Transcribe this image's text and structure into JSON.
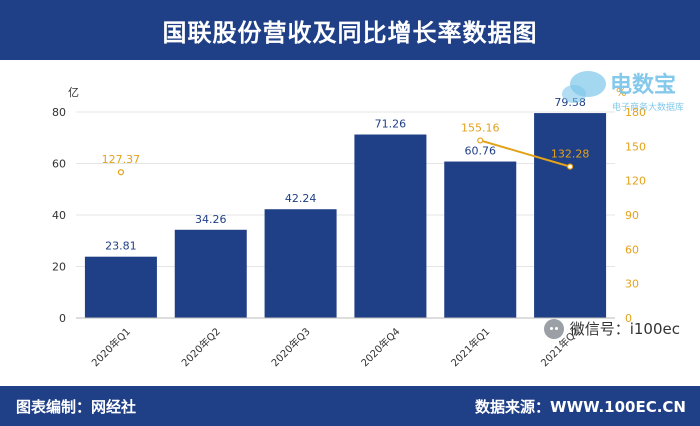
{
  "header": {
    "title": "国联股份营收及同比增长率数据图"
  },
  "footer": {
    "left": "图表编制：网经社",
    "right": "数据来源：WWW.100EC.CN"
  },
  "watermark": {
    "wechat": "微信号：i100ec",
    "logo_main": "电数宝",
    "logo_sub": "电子商务大数据库"
  },
  "chart_data": {
    "type": "bar",
    "title": "国联股份营收及同比增长率数据图",
    "categories": [
      "2020年Q1",
      "2020年Q2",
      "2020年Q3",
      "2020年Q4",
      "2021年Q1",
      "2021年Q2"
    ],
    "series": [
      {
        "values": [
          23.81,
          34.26,
          42.24,
          71.26,
          60.76,
          79.58
        ],
        "color": "#1f3f86",
        "axis": "left"
      },
      {
        "values": [
          127.37,
          null,
          null,
          null,
          155.16,
          132.28
        ],
        "color": "#e3a21a",
        "axis": "right",
        "type": "line"
      }
    ],
    "ylabel": "亿",
    "y2label": "%",
    "ylim": [
      0,
      80
    ],
    "y2lim": [
      0,
      180
    ],
    "yticks": [
      0,
      20,
      40,
      60,
      80
    ],
    "y2ticks": [
      0,
      30,
      60,
      90,
      120,
      150,
      180
    ],
    "grid": true
  },
  "colors": {
    "brand": "#1f3f86",
    "growth": "#e3a21a",
    "grid": "#e5e5e5"
  }
}
